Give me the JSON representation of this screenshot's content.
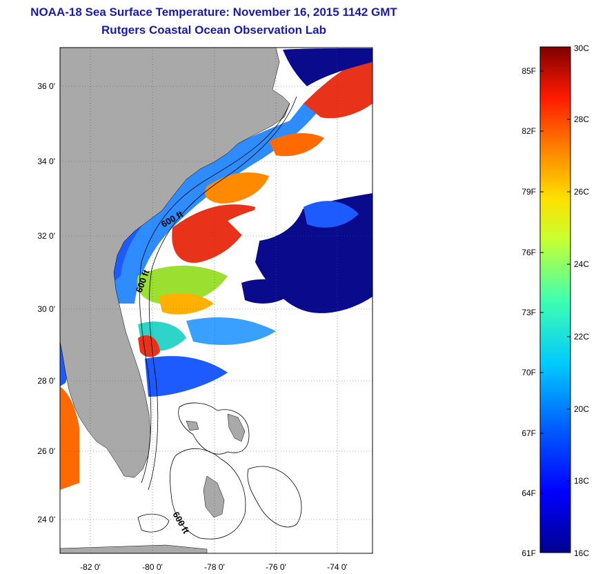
{
  "title": "NOAA-18 Sea Surface Temperature:  November 16, 2015 1142 GMT",
  "subtitle": "Rutgers Coastal Ocean Observation Lab",
  "map": {
    "lat_range": [
      23,
      37.1
    ],
    "lon_range": [
      -83,
      -73
    ],
    "lat_ticks": [
      "36 0'",
      "34 0'",
      "32 0'",
      "30 0'",
      "28 0'",
      "26 0'",
      "24 0'"
    ],
    "lon_ticks": [
      "-82 0'",
      "-80 0'",
      "-78 0'",
      "-76 0'",
      "-74 0'"
    ],
    "contour_labels": [
      "600 ft",
      "600 ft",
      "600 ft"
    ],
    "colors": {
      "land": "#a9a9a9",
      "cloud": "#ffffff",
      "cold": "#0a0a8c",
      "warm": "#e8321a"
    }
  },
  "colorbar": {
    "fahrenheit_labels": [
      "85F",
      "82F",
      "79F",
      "76F",
      "73F",
      "70F",
      "67F",
      "64F",
      "61F"
    ],
    "celsius_labels": [
      "30C",
      "28C",
      "26C",
      "24C",
      "22C",
      "20C",
      "18C",
      "16C"
    ],
    "range_c": [
      16,
      30
    ]
  }
}
